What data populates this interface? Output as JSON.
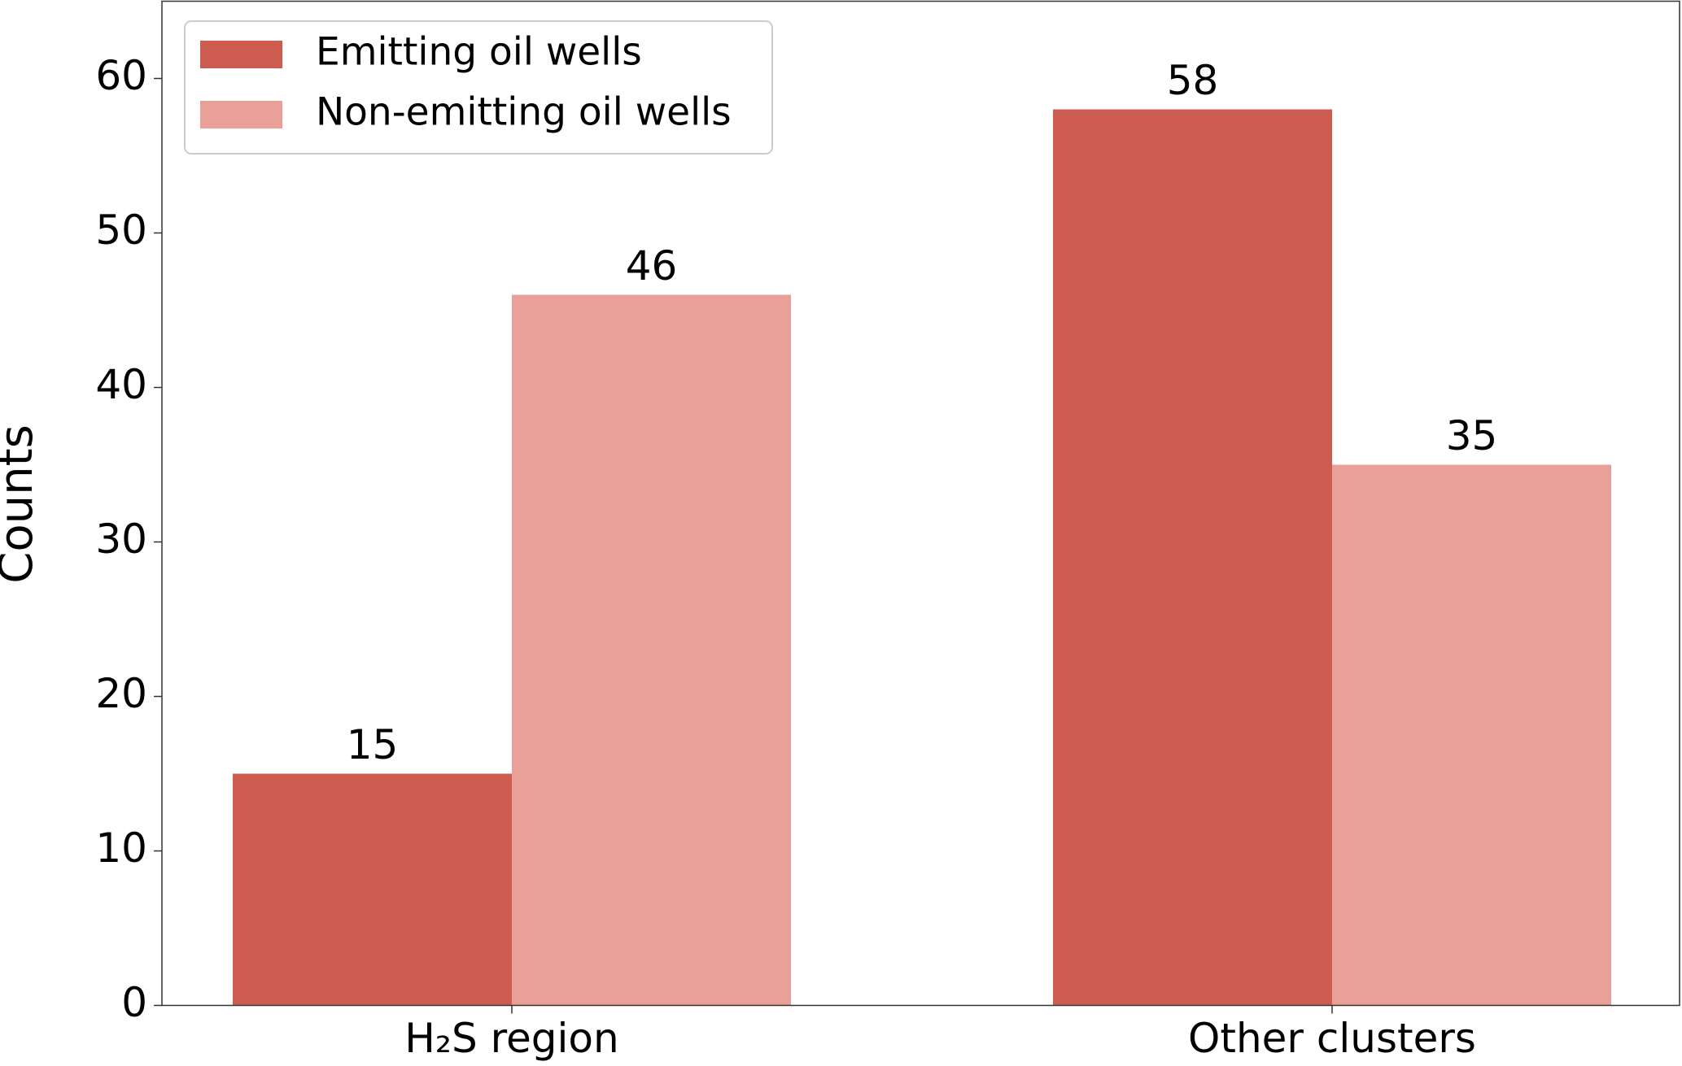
{
  "chart_data": {
    "type": "bar",
    "y_label": "Counts",
    "categories": [
      "H₂S region",
      "Other clusters"
    ],
    "series": [
      {
        "name": "Emitting oil wells",
        "color": "#cd5c50",
        "values": [
          15,
          58
        ]
      },
      {
        "name": "Non-emitting oil wells",
        "color": "#e8a098",
        "values": [
          46,
          35
        ]
      }
    ],
    "ylim": [
      0,
      65
    ],
    "yticks": [
      0,
      10,
      20,
      30,
      40,
      50,
      60
    ],
    "legend": "upper left",
    "data_labels": true
  }
}
